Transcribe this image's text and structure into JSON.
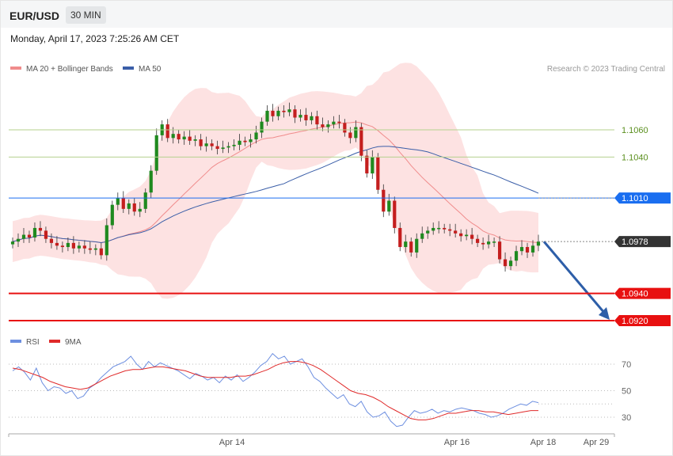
{
  "header": {
    "symbol": "EUR/USD",
    "timeframe": "30 MIN",
    "datetime": "Monday, April 17, 2023 7:25:26 AM CET"
  },
  "legend": {
    "ma20_label": "MA 20 + Bollinger Bands",
    "ma50_label": "MA 50",
    "rsi_label": "RSI",
    "rsi_ma_label": "9MA",
    "credit": "Research © 2023 Trading Central"
  },
  "colors": {
    "ma20": "#f08c8c",
    "ma50": "#3a5ea8",
    "bands": "#fde2e2",
    "bull": "#1f8a1f",
    "bear": "#c41e1e",
    "blue_level": "#1a6ef0",
    "red_level": "#e81010",
    "current": "#333333",
    "green_level": "#b5d18e",
    "arrow": "#2d5ea8",
    "rsi": "#6d8fe0",
    "rsi_ma": "#e02a2a"
  },
  "chart_data": [
    {
      "type": "candlestick",
      "y_range": [
        1.0914,
        1.1088
      ],
      "levels": [
        {
          "label": "1.1060",
          "value": 1.106,
          "kind": "resistance"
        },
        {
          "label": "1.1040",
          "value": 1.104,
          "kind": "resistance"
        },
        {
          "label": "1.1010",
          "value": 1.101,
          "kind": "pivot"
        },
        {
          "label": "1.0978",
          "value": 1.0978,
          "kind": "current"
        },
        {
          "label": "1.0940",
          "value": 1.094,
          "kind": "support"
        },
        {
          "label": "1.0920",
          "value": 1.092,
          "kind": "support"
        }
      ],
      "closes": [
        1.0978,
        1.098,
        1.0983,
        1.0981,
        1.0988,
        1.0986,
        1.098,
        1.0977,
        1.0975,
        1.0974,
        1.0977,
        1.0973,
        1.0975,
        1.0973,
        1.0972,
        1.0973,
        1.0968,
        1.099,
        1.1005,
        1.101,
        1.1002,
        1.1006,
        1.1,
        1.1002,
        1.1014,
        1.103,
        1.1056,
        1.1064,
        1.1054,
        1.1057,
        1.1053,
        1.1055,
        1.1052,
        1.1053,
        1.1048,
        1.105,
        1.1048,
        1.1046,
        1.1047,
        1.1048,
        1.1049,
        1.1052,
        1.1051,
        1.1053,
        1.1058,
        1.1066,
        1.1074,
        1.107,
        1.1074,
        1.1073,
        1.1075,
        1.1069,
        1.1071,
        1.1067,
        1.107,
        1.1064,
        1.1062,
        1.1064,
        1.1066,
        1.1065,
        1.1058,
        1.1054,
        1.1062,
        1.1041,
        1.1028,
        1.104,
        1.1016,
        1.1,
        1.1008,
        1.0988,
        1.0974,
        1.0978,
        1.097,
        1.098,
        1.0984,
        1.0986,
        1.0988,
        1.0988,
        1.0987,
        1.0986,
        1.0984,
        1.0982,
        1.0983,
        1.098,
        1.0977,
        1.0976,
        1.0978,
        1.0978,
        1.0965,
        1.096,
        1.0964,
        1.0971,
        1.0974,
        1.097,
        1.0975,
        1.0978
      ],
      "candle_count": 96,
      "ma20_end": 1.0978,
      "ma50_end": 1.101,
      "forecast": {
        "from": 1.0978,
        "to": 1.092
      }
    },
    {
      "type": "line",
      "series_names": [
        "RSI",
        "9MA"
      ],
      "y_range": [
        20,
        80
      ],
      "ticks": [
        70,
        50,
        30
      ],
      "rsi": [
        65,
        68,
        64,
        58,
        67,
        56,
        50,
        53,
        52,
        48,
        50,
        44,
        46,
        52,
        55,
        60,
        64,
        68,
        70,
        72,
        76,
        70,
        66,
        72,
        68,
        71,
        69,
        67,
        65,
        62,
        59,
        63,
        61,
        58,
        60,
        56,
        61,
        58,
        62,
        57,
        60,
        64,
        69,
        72,
        78,
        74,
        76,
        70,
        72,
        74,
        68,
        60,
        57,
        52,
        48,
        44,
        47,
        40,
        38,
        42,
        34,
        30,
        31,
        34,
        27,
        23,
        24,
        30,
        35,
        33,
        34,
        36,
        33,
        35,
        34,
        36,
        37,
        36,
        35,
        33,
        32,
        30,
        31,
        33,
        36,
        38,
        40,
        39,
        42,
        41
      ],
      "rsi_ma": [
        67,
        66,
        64,
        62,
        60,
        57,
        55,
        53,
        52,
        51,
        52,
        55,
        58,
        61,
        63,
        65,
        66,
        66,
        67,
        68,
        68,
        67,
        66,
        65,
        63,
        61,
        60,
        60,
        60,
        60,
        61,
        61,
        62,
        64,
        66,
        69,
        71,
        72,
        72,
        71,
        69,
        66,
        62,
        58,
        54,
        50,
        48,
        47,
        45,
        42,
        38,
        35,
        32,
        29,
        28,
        28,
        29,
        31,
        33,
        33,
        34,
        35,
        35,
        34,
        34,
        33,
        32,
        33,
        34,
        35,
        35
      ]
    }
  ],
  "x_axis": {
    "labels": [
      "Apr 14",
      "Apr 16",
      "Apr 18",
      "Apr 29"
    ]
  }
}
